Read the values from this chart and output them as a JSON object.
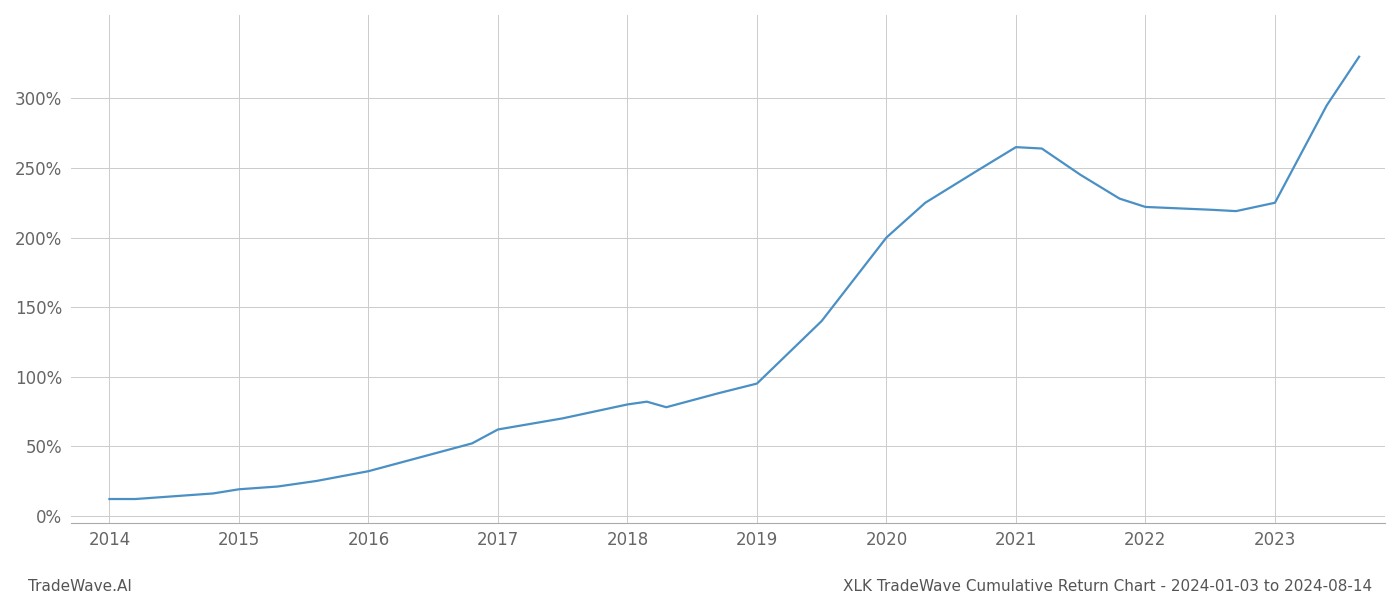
{
  "title": "XLK TradeWave Cumulative Return Chart - 2024-01-03 to 2024-08-14",
  "watermark": "TradeWave.AI",
  "line_color": "#4a90c4",
  "background_color": "#ffffff",
  "grid_color": "#cccccc",
  "x_values": [
    2014.0,
    2014.2,
    2014.5,
    2014.8,
    2015.0,
    2015.3,
    2015.6,
    2016.0,
    2016.4,
    2016.8,
    2017.0,
    2017.5,
    2018.0,
    2018.15,
    2018.3,
    2018.7,
    2019.0,
    2019.5,
    2020.0,
    2020.3,
    2020.7,
    2021.0,
    2021.2,
    2021.5,
    2021.8,
    2022.0,
    2022.5,
    2022.7,
    2023.0,
    2023.4,
    2023.65
  ],
  "y_values": [
    12,
    12,
    14,
    16,
    19,
    21,
    25,
    32,
    42,
    52,
    62,
    70,
    80,
    82,
    78,
    88,
    95,
    140,
    200,
    225,
    248,
    265,
    264,
    245,
    228,
    222,
    220,
    219,
    225,
    295,
    330
  ],
  "xlim": [
    2013.7,
    2023.85
  ],
  "ylim": [
    -5,
    360
  ],
  "yticks": [
    0,
    50,
    100,
    150,
    200,
    250,
    300
  ],
  "xtick_labels": [
    "2014",
    "2015",
    "2016",
    "2017",
    "2018",
    "2019",
    "2020",
    "2021",
    "2022",
    "2023"
  ],
  "xtick_positions": [
    2014,
    2015,
    2016,
    2017,
    2018,
    2019,
    2020,
    2021,
    2022,
    2023
  ],
  "line_width": 1.6,
  "tick_fontsize": 12,
  "watermark_fontsize": 11,
  "footer_fontsize": 11
}
